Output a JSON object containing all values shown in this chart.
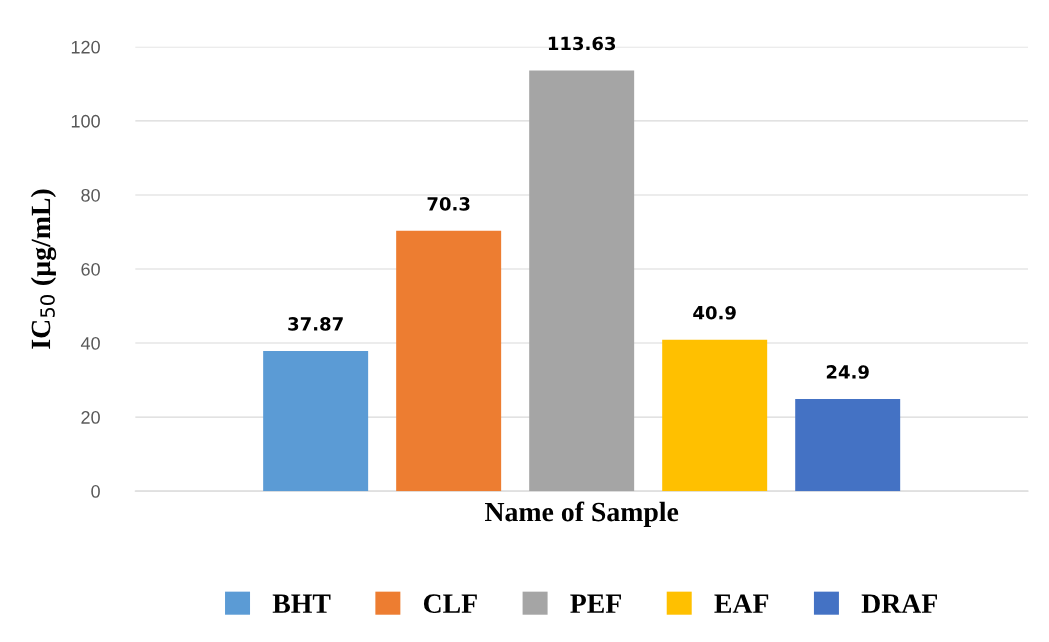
{
  "chart_data": {
    "type": "bar",
    "xlabel": "Name of Sample",
    "ylabel": "IC$_{50}$ (µg/mL)",
    "categories": [
      null
    ],
    "series": [
      {
        "name": "BHT",
        "color": "#5b9bd5",
        "values": [
          37.87
        ]
      },
      {
        "name": "CLF",
        "color": "#ed7d31",
        "values": [
          70.3
        ]
      },
      {
        "name": "PEF",
        "color": "#a5a5a5",
        "values": [
          113.63
        ]
      },
      {
        "name": "EAF",
        "color": "#ffc000",
        "values": [
          40.9
        ]
      },
      {
        "name": "DRAF",
        "color": "#4472c4",
        "values": [
          24.9
        ]
      }
    ],
    "ylim": [
      0,
      120
    ],
    "yticks": [
      0,
      20,
      40,
      60,
      80,
      100,
      120
    ],
    "grid": "y",
    "legend": "bottom",
    "data_labels": true
  }
}
